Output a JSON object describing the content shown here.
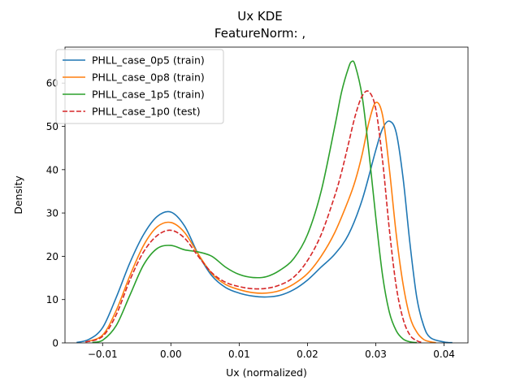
{
  "chart_data": {
    "type": "line",
    "title": "Ux KDE",
    "subtitle": "FeatureNorm: ,",
    "xlabel": "Ux (normalized)",
    "ylabel": "Density",
    "xlim": [
      -0.0155,
      0.0435
    ],
    "ylim": [
      0,
      68.3
    ],
    "xticks": [
      -0.01,
      0.0,
      0.01,
      0.02,
      0.03,
      0.04
    ],
    "xtick_labels": [
      "−0.01",
      "0.00",
      "0.01",
      "0.02",
      "0.03",
      "0.04"
    ],
    "yticks": [
      0,
      10,
      20,
      30,
      40,
      50,
      60
    ],
    "ytick_labels": [
      "0",
      "10",
      "20",
      "30",
      "40",
      "50",
      "60"
    ],
    "grid": false,
    "legend_position": "top-left",
    "series": [
      {
        "name": "PHLL_case_0p5 (train)",
        "color": "#1f77b4",
        "dash": "solid",
        "x": [
          -0.0138,
          -0.012,
          -0.01,
          -0.008,
          -0.006,
          -0.004,
          -0.002,
          0.0,
          0.002,
          0.004,
          0.006,
          0.008,
          0.01,
          0.012,
          0.014,
          0.016,
          0.018,
          0.02,
          0.022,
          0.024,
          0.026,
          0.028,
          0.03,
          0.031,
          0.032,
          0.033,
          0.034,
          0.035,
          0.036,
          0.037,
          0.038,
          0.04,
          0.0412
        ],
        "y": [
          0.1,
          0.8,
          3.5,
          10.5,
          18.5,
          25.0,
          29.2,
          30.2,
          27.0,
          20.5,
          15.5,
          12.8,
          11.5,
          10.8,
          10.6,
          11.0,
          12.3,
          14.5,
          17.5,
          20.5,
          25.0,
          33.0,
          44.5,
          49.5,
          51.2,
          48.5,
          38.0,
          23.0,
          10.5,
          4.0,
          1.2,
          0.2,
          0.05
        ]
      },
      {
        "name": "PHLL_case_0p8 (train)",
        "color": "#ff7f0e",
        "dash": "solid",
        "x": [
          -0.0125,
          -0.01,
          -0.008,
          -0.006,
          -0.004,
          -0.002,
          0.0,
          0.002,
          0.004,
          0.006,
          0.008,
          0.01,
          0.012,
          0.014,
          0.016,
          0.018,
          0.02,
          0.022,
          0.024,
          0.026,
          0.027,
          0.028,
          0.029,
          0.03,
          0.031,
          0.032,
          0.033,
          0.034,
          0.035,
          0.036,
          0.037,
          0.038,
          0.0388
        ],
        "y": [
          0.2,
          1.8,
          7.5,
          15.5,
          22.5,
          26.8,
          27.8,
          25.5,
          20.5,
          16.0,
          13.5,
          12.3,
          11.6,
          11.5,
          12.1,
          13.6,
          16.0,
          20.0,
          25.5,
          33.0,
          37.5,
          43.5,
          51.0,
          55.5,
          52.5,
          40.0,
          25.0,
          13.5,
          6.0,
          2.5,
          0.8,
          0.25,
          0.05
        ]
      },
      {
        "name": "PHLL_case_1p5 (train)",
        "color": "#2ca02c",
        "dash": "solid",
        "x": [
          -0.0115,
          -0.01,
          -0.008,
          -0.006,
          -0.004,
          -0.002,
          0.0,
          0.002,
          0.004,
          0.006,
          0.008,
          0.01,
          0.012,
          0.014,
          0.016,
          0.018,
          0.02,
          0.022,
          0.024,
          0.025,
          0.026,
          0.0265,
          0.027,
          0.028,
          0.029,
          0.03,
          0.031,
          0.032,
          0.033,
          0.034,
          0.035,
          0.036
        ],
        "y": [
          0.1,
          0.6,
          4.0,
          11.0,
          18.0,
          21.8,
          22.5,
          21.5,
          21.0,
          20.0,
          17.5,
          15.8,
          15.1,
          15.3,
          16.8,
          19.5,
          25.0,
          35.0,
          50.0,
          58.0,
          63.5,
          65.0,
          64.0,
          57.0,
          44.0,
          29.0,
          15.5,
          7.0,
          2.8,
          0.9,
          0.25,
          0.05
        ]
      },
      {
        "name": "PHLL_case_1p0 (test)",
        "color": "#d62728",
        "dash": "dashed",
        "x": [
          -0.0125,
          -0.01,
          -0.008,
          -0.006,
          -0.004,
          -0.002,
          0.0,
          0.002,
          0.004,
          0.006,
          0.008,
          0.01,
          0.012,
          0.014,
          0.016,
          0.018,
          0.02,
          0.022,
          0.024,
          0.025,
          0.026,
          0.027,
          0.028,
          0.029,
          0.03,
          0.031,
          0.032,
          0.033,
          0.034,
          0.035,
          0.036,
          0.0368
        ],
        "y": [
          0.2,
          1.5,
          6.5,
          14.5,
          21.0,
          24.8,
          26.0,
          24.2,
          20.0,
          16.2,
          14.0,
          13.0,
          12.5,
          12.6,
          13.4,
          15.2,
          19.0,
          25.0,
          34.0,
          39.5,
          46.0,
          52.5,
          57.0,
          58.0,
          54.0,
          42.0,
          26.0,
          13.0,
          5.5,
          1.8,
          0.5,
          0.1
        ]
      }
    ]
  }
}
